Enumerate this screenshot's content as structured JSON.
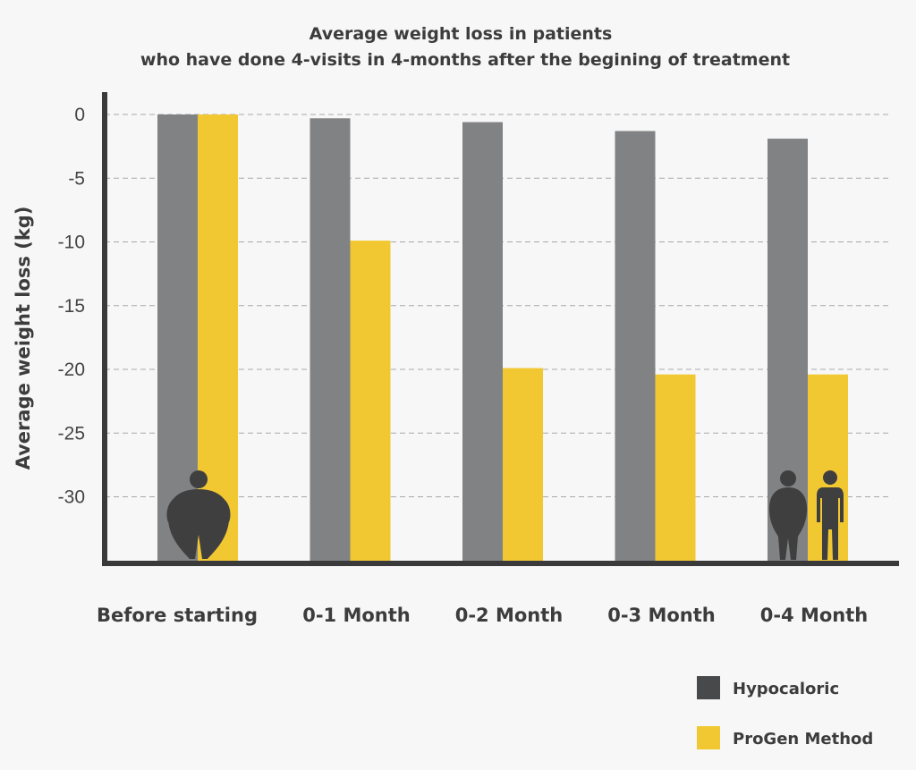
{
  "chart_data": {
    "type": "bar",
    "title": "Average weight loss in patients",
    "subtitle": "who have done 4-visits in 4-months after the begining of treatment",
    "xlabel": "",
    "ylabel": "Average weight loss (kg)",
    "ylim": [
      -35,
      0
    ],
    "yticks": [
      0,
      -5,
      -10,
      -15,
      -20,
      -25,
      -30
    ],
    "ytick_labels": [
      "0",
      "-5",
      "-10",
      "-15",
      "-20",
      "-25",
      "-30"
    ],
    "grid": true,
    "categories": [
      "Before starting",
      "0-1 Month",
      "0-2 Month",
      "0-3 Month",
      "0-4 Month"
    ],
    "series": [
      {
        "name": "Hypocaloric",
        "color": "#808284",
        "values": [
          0,
          -0.3,
          -0.6,
          -1.3,
          -1.9
        ]
      },
      {
        "name": "ProGen Method",
        "color": "#f2c832",
        "values": [
          0,
          -9.9,
          -19.9,
          -20.4,
          -20.4
        ]
      }
    ],
    "legend": {
      "position": "bottom-right",
      "items": [
        {
          "label": "Hypocaloric",
          "color": "#48494b"
        },
        {
          "label": "ProGen Method",
          "color": "#f2c832"
        }
      ]
    },
    "icons": [
      "obese-person-icon",
      "overweight-person-icon",
      "slim-person-icon"
    ]
  }
}
